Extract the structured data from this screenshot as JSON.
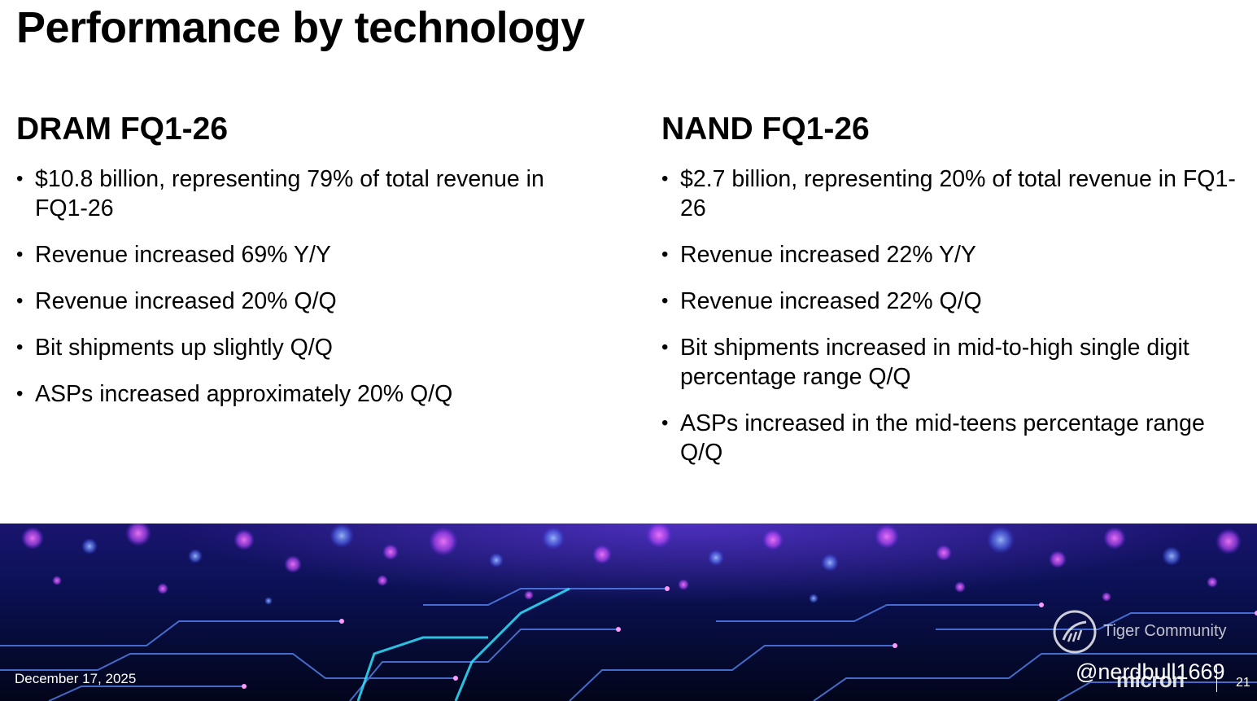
{
  "slide": {
    "title": "Performance by technology",
    "date": "December 17, 2025",
    "page_number": "21",
    "brand": "micron"
  },
  "dram": {
    "heading": "DRAM FQ1-26",
    "bullets": [
      "$10.8 billion, representing 79% of total revenue in FQ1-26",
      "Revenue increased 69% Y/Y",
      "Revenue increased 20% Q/Q",
      "Bit shipments up slightly Q/Q",
      "ASPs increased approximately 20% Q/Q"
    ]
  },
  "nand": {
    "heading": "NAND FQ1-26",
    "bullets": [
      "$2.7 billion, representing 20% of total revenue in FQ1-26",
      "Revenue increased 22% Y/Y",
      "Revenue increased 22% Q/Q",
      "Bit shipments increased in mid-to-high single digit percentage range Q/Q",
      "ASPs increased in the mid-teens percentage range Q/Q"
    ]
  },
  "watermark": {
    "community": "Tiger Community",
    "handle": "@nerdbull1669"
  }
}
